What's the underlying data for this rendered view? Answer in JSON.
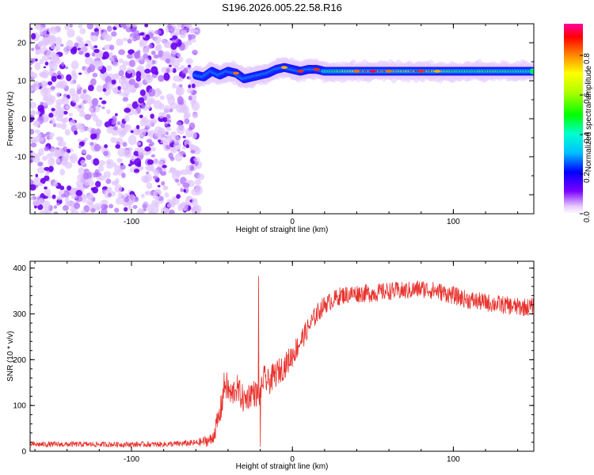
{
  "title": "S196.2026.005.22.58.R16",
  "chart_data": [
    {
      "type": "heatmap",
      "xlabel": "Height of straight line (km)",
      "ylabel": "Frequency (Hz)",
      "xlim": [
        -163,
        150
      ],
      "ylim": [
        -25,
        25
      ],
      "x_ticks": [
        -100,
        0,
        100
      ],
      "y_ticks": [
        -20,
        -10,
        0,
        10,
        20
      ],
      "colorbar": {
        "label": "Normalized spectral amplitude",
        "range": [
          0,
          0.96
        ],
        "ticks": [
          0.0,
          0.2,
          0.4,
          0.6,
          0.8
        ],
        "tick_labels": [
          "0.0",
          "0.2",
          "0.4",
          "0.6",
          "0.8"
        ]
      },
      "noise_region": {
        "x_range": [
          -163,
          -58
        ],
        "y_range": [
          -25,
          25
        ],
        "amplitude": 0.15
      },
      "signal_trace": [
        {
          "x": -60,
          "y": 11.5,
          "a": 0.4
        },
        {
          "x": -55,
          "y": 11.0,
          "a": 0.45
        },
        {
          "x": -50,
          "y": 12.5,
          "a": 0.35
        },
        {
          "x": -45,
          "y": 11.5,
          "a": 0.3
        },
        {
          "x": -40,
          "y": 12.5,
          "a": 0.4
        },
        {
          "x": -35,
          "y": 12.0,
          "a": 0.85
        },
        {
          "x": -30,
          "y": 10.5,
          "a": 0.45
        },
        {
          "x": -25,
          "y": 11.0,
          "a": 0.35
        },
        {
          "x": -20,
          "y": 11.5,
          "a": 0.5
        },
        {
          "x": -15,
          "y": 12.0,
          "a": 0.55
        },
        {
          "x": -10,
          "y": 13.0,
          "a": 0.6
        },
        {
          "x": -5,
          "y": 13.5,
          "a": 0.8
        },
        {
          "x": 0,
          "y": 13.0,
          "a": 0.55
        },
        {
          "x": 5,
          "y": 12.5,
          "a": 0.9
        },
        {
          "x": 10,
          "y": 13.0,
          "a": 0.5
        },
        {
          "x": 15,
          "y": 13.0,
          "a": 0.9
        },
        {
          "x": 20,
          "y": 12.5,
          "a": 0.45
        },
        {
          "x": 30,
          "y": 12.5,
          "a": 0.6
        },
        {
          "x": 40,
          "y": 12.5,
          "a": 0.85
        },
        {
          "x": 50,
          "y": 12.5,
          "a": 0.95
        },
        {
          "x": 60,
          "y": 12.5,
          "a": 0.85
        },
        {
          "x": 70,
          "y": 12.5,
          "a": 0.75
        },
        {
          "x": 80,
          "y": 12.5,
          "a": 0.9
        },
        {
          "x": 90,
          "y": 12.5,
          "a": 0.8
        },
        {
          "x": 100,
          "y": 12.5,
          "a": 0.6
        },
        {
          "x": 110,
          "y": 12.5,
          "a": 0.55
        },
        {
          "x": 120,
          "y": 12.5,
          "a": 0.6
        },
        {
          "x": 130,
          "y": 12.5,
          "a": 0.55
        },
        {
          "x": 140,
          "y": 12.5,
          "a": 0.5
        },
        {
          "x": 150,
          "y": 12.5,
          "a": 0.45
        }
      ]
    },
    {
      "type": "line",
      "xlabel": "Height of straight line (km)",
      "ylabel": "SNR (10 * v/v)",
      "xlim": [
        -163,
        150
      ],
      "ylim": [
        0,
        415
      ],
      "x_ticks": [
        -100,
        0,
        100
      ],
      "y_ticks": [
        0,
        100,
        200,
        300,
        400
      ],
      "color": "#e8322d",
      "series": [
        {
          "x": [
            -163,
            -140,
            -120,
            -100,
            -80,
            -60,
            -50,
            -45,
            -42,
            -38,
            -35,
            -30,
            -25,
            -20,
            -18,
            -15,
            -10,
            -5,
            0,
            5,
            10,
            15,
            20,
            25,
            30,
            40,
            50,
            60,
            70,
            80,
            90,
            100,
            110,
            120,
            130,
            140,
            150
          ],
          "values": [
            15,
            15,
            15,
            15,
            15,
            18,
            25,
            80,
            150,
            120,
            140,
            110,
            130,
            120,
            160,
            150,
            170,
            185,
            210,
            240,
            270,
            300,
            320,
            330,
            340,
            345,
            345,
            350,
            350,
            355,
            350,
            340,
            330,
            325,
            320,
            315,
            315
          ],
          "noise": [
            12,
            12,
            12,
            12,
            12,
            15,
            30,
            60,
            70,
            60,
            65,
            60,
            60,
            55,
            60,
            60,
            60,
            55,
            55,
            50,
            45,
            45,
            40,
            40,
            40,
            40,
            40,
            40,
            40,
            40,
            40,
            40,
            40,
            40,
            40,
            40,
            40
          ]
        }
      ],
      "spikes": [
        {
          "x": -21,
          "y": 383
        },
        {
          "x": -20,
          "y": 10
        }
      ]
    }
  ]
}
